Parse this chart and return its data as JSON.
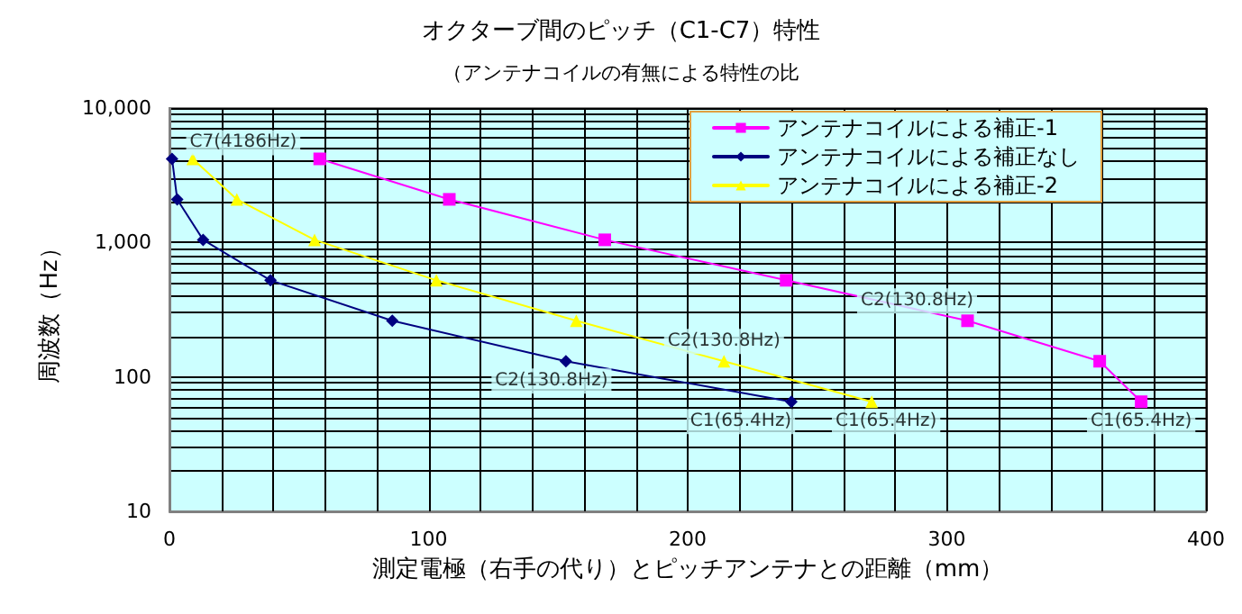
{
  "chart_data": {
    "type": "line",
    "title": "オクターブ間のピッチ（C1-C7）特性",
    "subtitle": "（アンテナコイルの有無による特性の比",
    "xlabel": "測定電極（右手の代り）とピッチアンテナとの距離（mm）",
    "ylabel": "周波数（Hz）",
    "series": [
      {
        "name": "アンテナコイルによる補正-1",
        "color": "#ff00ff",
        "marker": "square",
        "x": [
          58,
          108,
          168,
          238,
          308,
          359,
          375
        ],
        "values": [
          4186,
          2093,
          1046.5,
          523.3,
          261.6,
          130.8,
          65.4
        ]
      },
      {
        "name": "アンテナコイルによる補正なし",
        "color": "#000080",
        "marker": "diamond",
        "x": [
          1,
          3,
          13,
          39,
          86,
          153,
          240
        ],
        "values": [
          4186,
          2093,
          1046.5,
          523.3,
          261.6,
          130.8,
          65.4
        ]
      },
      {
        "name": "アンテナコイルによる補正-2",
        "color": "#ffff00",
        "marker": "triangle",
        "x": [
          9,
          26,
          56,
          103,
          157,
          214,
          271
        ],
        "values": [
          4186,
          2093,
          1046.5,
          523.3,
          261.6,
          130.8,
          65.4
        ]
      }
    ],
    "annotations": [
      {
        "text": "C7(4186Hz)",
        "x": 9,
        "y": 4186
      },
      {
        "text": "C2(130.8Hz)",
        "x": 308,
        "y": 261.6
      },
      {
        "text": "C2(130.8Hz)",
        "x": 153,
        "y": 130.8
      },
      {
        "text": "C2(130.8Hz)",
        "x": 214,
        "y": 130.8
      },
      {
        "text": "C1(65.4Hz)",
        "x": 240,
        "y": 65.4
      },
      {
        "text": "C1(65.4Hz)",
        "x": 271,
        "y": 65.4
      },
      {
        "text": "C1(65.4Hz)",
        "x": 375,
        "y": 65.4
      }
    ],
    "xlim": [
      0,
      400
    ],
    "xticks": [
      0,
      100,
      200,
      300,
      400
    ],
    "ylim": [
      10,
      10000
    ],
    "yticks": [
      10,
      100,
      {
        "value": 1000,
        "label": "1,000"
      },
      {
        "value": 10000,
        "label": "10,000"
      }
    ],
    "log": "y",
    "grid": true,
    "legend": "top right"
  }
}
